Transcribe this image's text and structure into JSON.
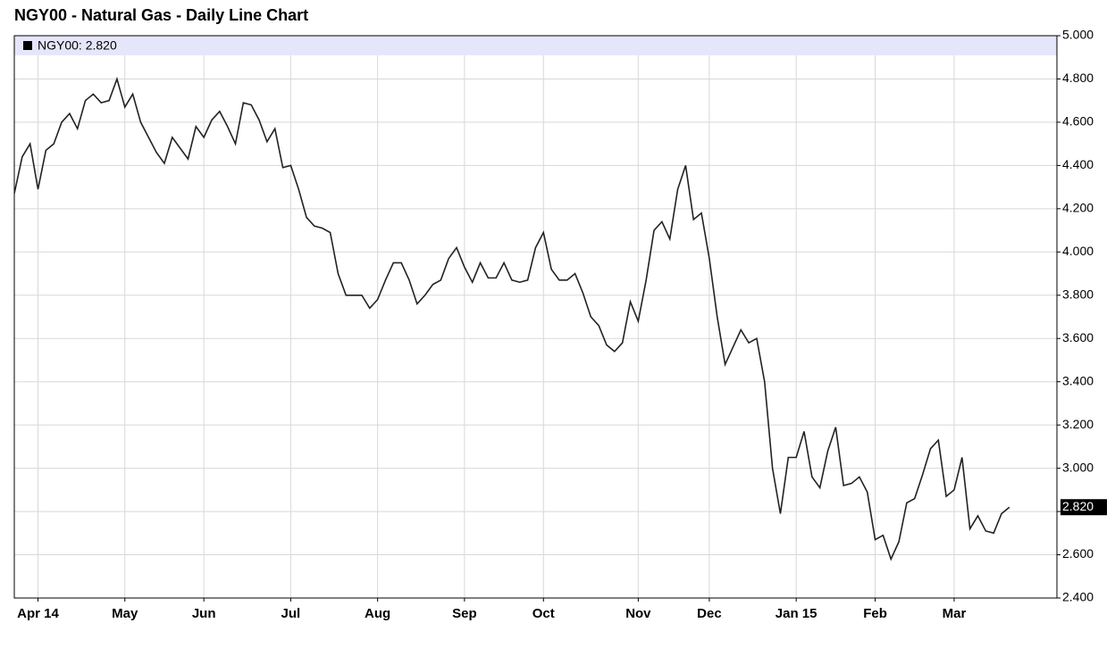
{
  "chart_data": {
    "type": "line",
    "title": "NGY00 - Natural Gas - Daily Line Chart",
    "categories": [
      null,
      null,
      null,
      "Apr 14",
      null,
      null,
      null,
      null,
      null,
      null,
      null,
      null,
      null,
      null,
      "May",
      null,
      null,
      null,
      null,
      null,
      null,
      null,
      null,
      null,
      "Jun",
      null,
      null,
      null,
      null,
      null,
      null,
      null,
      null,
      null,
      null,
      "Jul",
      null,
      null,
      null,
      null,
      null,
      null,
      null,
      null,
      null,
      null,
      "Aug",
      null,
      null,
      null,
      null,
      null,
      null,
      null,
      null,
      null,
      null,
      "Sep",
      null,
      null,
      null,
      null,
      null,
      null,
      null,
      null,
      null,
      "Oct",
      null,
      null,
      null,
      null,
      null,
      null,
      null,
      null,
      null,
      null,
      null,
      "Nov",
      null,
      null,
      null,
      null,
      null,
      null,
      null,
      null,
      "Dec",
      null,
      null,
      null,
      null,
      null,
      null,
      null,
      null,
      null,
      null,
      "Jan 15",
      null,
      null,
      null,
      null,
      null,
      null,
      null,
      null,
      null,
      "Feb",
      null,
      null,
      null,
      null,
      null,
      null,
      null,
      null,
      null,
      "Mar",
      null,
      null,
      null,
      null,
      null,
      null,
      null
    ],
    "series": [
      {
        "name": "NGY00: 2.820",
        "color": "#222222",
        "values": [
          4.27,
          4.44,
          4.5,
          4.29,
          4.47,
          4.5,
          4.6,
          4.64,
          4.57,
          4.7,
          4.73,
          4.69,
          4.7,
          4.8,
          4.67,
          4.73,
          4.6,
          4.53,
          4.46,
          4.41,
          4.53,
          4.48,
          4.43,
          4.58,
          4.53,
          4.61,
          4.65,
          4.58,
          4.5,
          4.69,
          4.68,
          4.61,
          4.51,
          4.57,
          4.39,
          4.4,
          4.29,
          4.16,
          4.12,
          4.11,
          4.09,
          3.9,
          3.8,
          3.8,
          3.8,
          3.74,
          3.78,
          3.87,
          3.95,
          3.95,
          3.87,
          3.76,
          3.8,
          3.85,
          3.87,
          3.97,
          4.02,
          3.93,
          3.86,
          3.95,
          3.88,
          3.88,
          3.95,
          3.87,
          3.86,
          3.87,
          4.02,
          4.09,
          3.92,
          3.87,
          3.87,
          3.9,
          3.81,
          3.7,
          3.66,
          3.57,
          3.54,
          3.58,
          3.77,
          3.68,
          3.87,
          4.1,
          4.14,
          4.06,
          4.29,
          4.4,
          4.15,
          4.18,
          3.97,
          3.7,
          3.48,
          3.56,
          3.64,
          3.58,
          3.6,
          3.4,
          3.0,
          2.79,
          3.05,
          3.05,
          3.17,
          2.96,
          2.91,
          3.08,
          3.19,
          2.92,
          2.93,
          2.96,
          2.89,
          2.67,
          2.69,
          2.58,
          2.66,
          2.84,
          2.86,
          2.97,
          3.09,
          3.13,
          2.87,
          2.9,
          3.05,
          2.72,
          2.78,
          2.71,
          2.7,
          2.79,
          2.82
        ],
        "value_labels": [
          null,
          null,
          null,
          null,
          null,
          null,
          null,
          null,
          null,
          null,
          null,
          null,
          null,
          null,
          null,
          null,
          null,
          null,
          null,
          null,
          null,
          null,
          null,
          null,
          null,
          null,
          null,
          null,
          null,
          null,
          null,
          null,
          null,
          null,
          null,
          null,
          null,
          null,
          null,
          null,
          null,
          null,
          null,
          null,
          null,
          null,
          null,
          null,
          null,
          null,
          null,
          null,
          null,
          null,
          null,
          null,
          null,
          null,
          null,
          null,
          null,
          null,
          null,
          null,
          null,
          null,
          null,
          null,
          null,
          null,
          null,
          null,
          null,
          null,
          null,
          null,
          null,
          null,
          null,
          null,
          null,
          null,
          null,
          null,
          null,
          null,
          null,
          null,
          null,
          null,
          null,
          null,
          null,
          null,
          null,
          null,
          null,
          null,
          null,
          null,
          null,
          null,
          null,
          null,
          null,
          null,
          null,
          null,
          null,
          null,
          null,
          null,
          null,
          null,
          null,
          null,
          null,
          null,
          null,
          null,
          null,
          null,
          null,
          null,
          null,
          null,
          "2.820"
        ]
      }
    ],
    "ylim": [
      2.4,
      5.0
    ],
    "yticks": [
      {
        "value": 2.4,
        "label": "2.400"
      },
      {
        "value": 2.6,
        "label": "2.600"
      },
      {
        "value": 2.8,
        "label": "2.800"
      },
      {
        "value": 3.0,
        "label": "3.000"
      },
      {
        "value": 3.2,
        "label": "3.200"
      },
      {
        "value": 3.4,
        "label": "3.400"
      },
      {
        "value": 3.6,
        "label": "3.600"
      },
      {
        "value": 3.8,
        "label": "3.800"
      },
      {
        "value": 4.0,
        "label": "4.000"
      },
      {
        "value": 4.2,
        "label": "4.200"
      },
      {
        "value": 4.4,
        "label": "4.400"
      },
      {
        "value": 4.6,
        "label": "4.600"
      },
      {
        "value": 4.8,
        "label": "4.800"
      },
      {
        "value": 5.0,
        "label": "5.000"
      }
    ],
    "grid": true,
    "legend": "top-left"
  }
}
